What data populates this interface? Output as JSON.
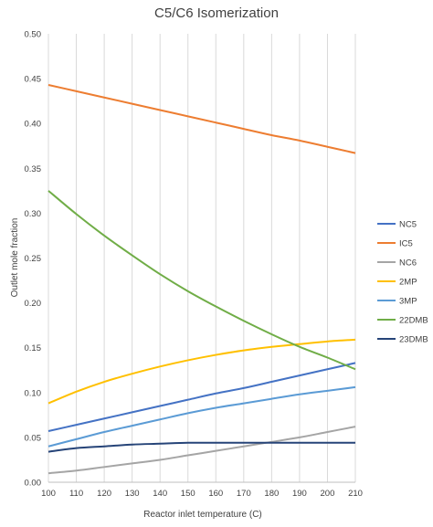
{
  "chart_data": {
    "type": "line",
    "title": "C5/C6 Isomerization",
    "xlabel": "Reactor inlet temperature (C)",
    "ylabel": "Outlet mole fraction",
    "xlim": [
      100,
      210
    ],
    "ylim": [
      0,
      0.5
    ],
    "x_ticks": [
      "100",
      "110",
      "120",
      "130",
      "140",
      "150",
      "160",
      "170",
      "180",
      "190",
      "200",
      "210"
    ],
    "y_ticks": [
      "0.00",
      "0.05",
      "0.10",
      "0.15",
      "0.20",
      "0.25",
      "0.30",
      "0.35",
      "0.40",
      "0.45",
      "0.50"
    ],
    "grid": "vertical",
    "legend_position": "right",
    "x": [
      100,
      110,
      120,
      130,
      140,
      150,
      160,
      170,
      180,
      190,
      200,
      210
    ],
    "series": [
      {
        "name": "NC5",
        "color": "#4472C4",
        "values": [
          0.057,
          0.064,
          0.071,
          0.078,
          0.085,
          0.092,
          0.099,
          0.105,
          0.112,
          0.119,
          0.126,
          0.133
        ]
      },
      {
        "name": "IC5",
        "color": "#ED7D31",
        "values": [
          0.443,
          0.436,
          0.429,
          0.422,
          0.415,
          0.408,
          0.401,
          0.394,
          0.387,
          0.381,
          0.374,
          0.367
        ]
      },
      {
        "name": "NC6",
        "color": "#A5A5A5",
        "values": [
          0.01,
          0.013,
          0.017,
          0.021,
          0.025,
          0.03,
          0.035,
          0.04,
          0.045,
          0.05,
          0.056,
          0.062
        ]
      },
      {
        "name": "2MP",
        "color": "#FFC000",
        "values": [
          0.088,
          0.101,
          0.112,
          0.121,
          0.129,
          0.136,
          0.142,
          0.147,
          0.151,
          0.154,
          0.157,
          0.159
        ]
      },
      {
        "name": "3MP",
        "color": "#5B9BD5",
        "values": [
          0.04,
          0.048,
          0.056,
          0.063,
          0.07,
          0.077,
          0.083,
          0.088,
          0.093,
          0.098,
          0.102,
          0.106
        ]
      },
      {
        "name": "22DMB",
        "color": "#70AD47",
        "values": [
          0.325,
          0.299,
          0.275,
          0.253,
          0.232,
          0.213,
          0.196,
          0.18,
          0.165,
          0.151,
          0.139,
          0.126
        ]
      },
      {
        "name": "23DMB",
        "color": "#264478",
        "values": [
          0.034,
          0.038,
          0.04,
          0.042,
          0.043,
          0.044,
          0.044,
          0.044,
          0.044,
          0.044,
          0.044,
          0.044
        ]
      }
    ]
  }
}
